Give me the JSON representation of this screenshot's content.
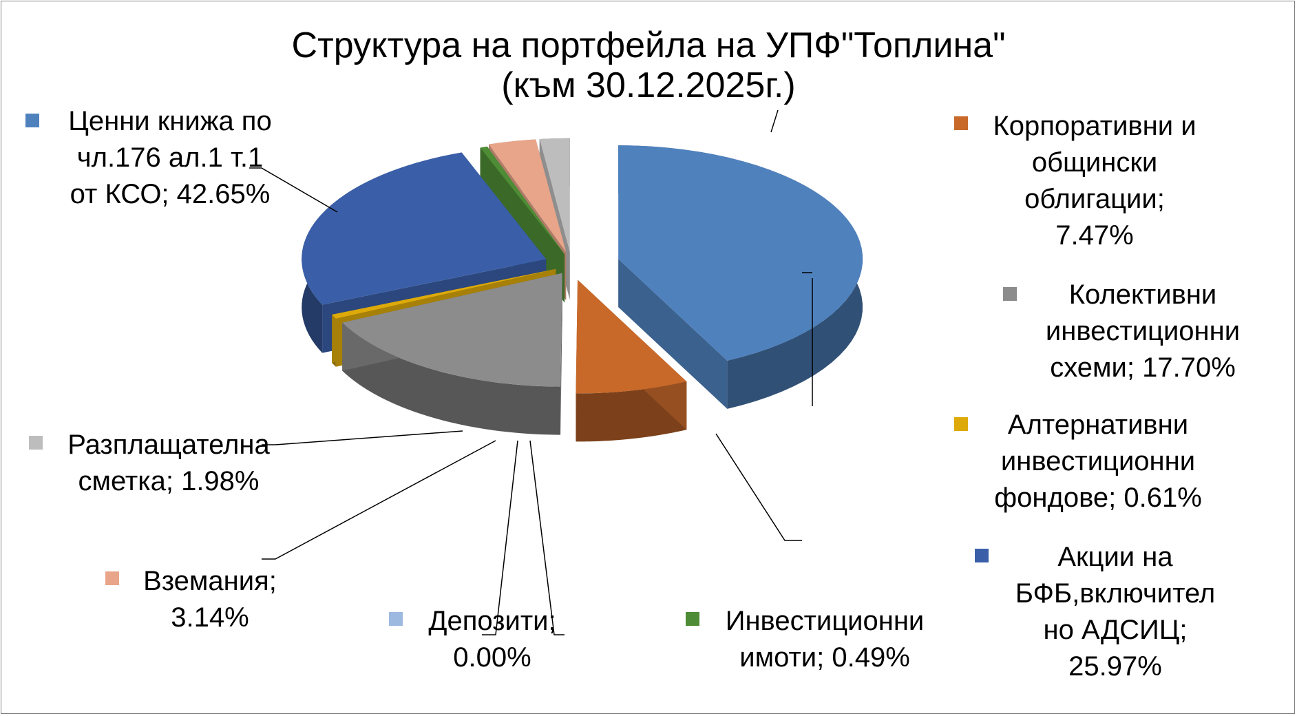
{
  "chart_data": {
    "type": "pie",
    "title": "Структура на портфейла на УПФ\"Топлина\"",
    "subtitle": "(към 30.12.2025г.)",
    "slices": [
      {
        "label": "Ценни книжа по чл.176 ал.1 т.1 от КСО; 42.65%",
        "name": "Ценни книжа по чл.176 ал.1 т.1 от КСО",
        "value": 42.65,
        "color": "#4F81BD"
      },
      {
        "label": "Корпоративни и общински облигации; 7.47%",
        "name": "Корпоративни и общински облигации",
        "value": 7.47,
        "color": "#C8692A"
      },
      {
        "label": "Колективни инвестиционни схеми; 17.70%",
        "name": "Колективни инвестиционни схеми",
        "value": 17.7,
        "color": "#8C8C8C"
      },
      {
        "label": "Алтернативни инвестиционни фондове; 0.61%",
        "name": "Алтернативни инвестиционни фондове",
        "value": 0.61,
        "color": "#DDAA0A"
      },
      {
        "label": "Акции на БФБ,включител но АДСИЦ; 25.97%",
        "name": "Акции на БФБ,включително АДСИЦ",
        "value": 25.97,
        "color": "#3A5FA8"
      },
      {
        "label": "Инвестиционни имоти; 0.49%",
        "name": "Инвестиционни имоти",
        "value": 0.49,
        "color": "#4E8C35"
      },
      {
        "label": "Депозити; 0.00%",
        "name": "Депозити",
        "value": 0.0,
        "color": "#9DB9E0"
      },
      {
        "label": "Вземания; 3.14%",
        "name": "Вземания",
        "value": 3.14,
        "color": "#E8A58A"
      },
      {
        "label": "Разплащателна сметка; 1.98%",
        "name": "Разплащателна сметка",
        "value": 1.98,
        "color": "#BDBDBD"
      }
    ]
  },
  "labels": {
    "cb": "Ценни книжа по\nчл.176 ал.1 т.1\nот КСО; 42.65%",
    "corp": "Корпоративни и\nобщински\nоблигации;\n7.47%",
    "kis": "Колективни\nинвестиционни\nсхеми; 17.70%",
    "aif": "Алтернативни\nинвестиционни\nфондове; 0.61%",
    "bfb": "Акции на\nБФБ,включител\nно АДСИЦ;\n25.97%",
    "ii": "Инвестиционни\nимоти; 0.49%",
    "dep": "Депозити;\n0.00%",
    "vz": "Вземания;\n3.14%",
    "rs": "Разплащателна\nсметка; 1.98%"
  }
}
